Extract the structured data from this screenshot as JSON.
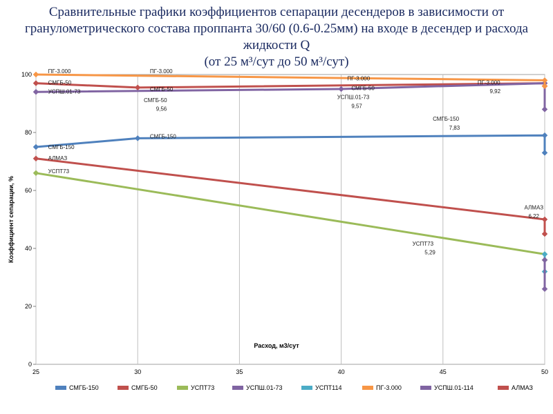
{
  "title": {
    "line1": "Сравнительные графики коэффициентов сепарации десендеров  в зависимости от",
    "line2": "гранулометрического  состава проппанта 30/60 (0.6-0.25мм)  на входе в десендер и расхода",
    "line3": "жидкости Q",
    "line4": "(от 25 м³/сут до 50 м³/сут)"
  },
  "chart_data": {
    "type": "line",
    "xlabel": "Расход, м3/сут",
    "ylabel": "Коэффициент сепарации, %",
    "xlim": [
      25,
      50
    ],
    "ylim": [
      0,
      100
    ],
    "xticks": [
      25,
      30,
      35,
      40,
      45,
      50
    ],
    "yticks": [
      0,
      20,
      40,
      60,
      80,
      100
    ],
    "grid": "vertical",
    "legend_position": "bottom",
    "series": [
      {
        "name": "СМГБ-150",
        "color": "#4f81bd",
        "x": [
          25,
          30,
          50,
          50
        ],
        "y": [
          75,
          78,
          79,
          73
        ]
      },
      {
        "name": "СМГБ-50",
        "color": "#c0504d",
        "x": [
          25,
          30,
          50,
          50
        ],
        "y": [
          97,
          95.5,
          97,
          96
        ]
      },
      {
        "name": "УСПТ73",
        "color": "#9bbb59",
        "x": [
          25,
          50,
          50
        ],
        "y": [
          66,
          38,
          36
        ]
      },
      {
        "name": "УСПШ.01-73",
        "color": "#8064a2",
        "x": [
          25,
          40,
          50,
          50
        ],
        "y": [
          94,
          95,
          97,
          88
        ]
      },
      {
        "name": "УСПТ114",
        "color": "#4bacc6",
        "x": [
          50,
          50
        ],
        "y": [
          38,
          32
        ]
      },
      {
        "name": "ПГ-3.000",
        "color": "#f79646",
        "x": [
          25,
          50,
          50
        ],
        "y": [
          100,
          98,
          96
        ]
      },
      {
        "name": "УСПШ.01-114",
        "color": "#8064a2",
        "x": [
          50,
          50
        ],
        "y": [
          36,
          26
        ]
      },
      {
        "name": "АЛМАЗ",
        "color": "#c0504d",
        "x": [
          25,
          50,
          50
        ],
        "y": [
          71,
          50,
          45
        ]
      }
    ],
    "point_labels": [
      {
        "text": "ПГ-3.000",
        "x": 25.6,
        "y": 100.5
      },
      {
        "text": "ПГ-3.000",
        "x": 30.6,
        "y": 100.5
      },
      {
        "text": "ПГ-3.000",
        "x": 40.3,
        "y": 98
      },
      {
        "text": "ПГ-3.000",
        "x": 46.7,
        "y": 96.6
      },
      {
        "text": "9,92",
        "x": 47.3,
        "y": 93.6
      },
      {
        "text": "СМГБ-50",
        "x": 25.6,
        "y": 96.5
      },
      {
        "text": "СМГБ-50",
        "x": 30.6,
        "y": 94.3
      },
      {
        "text": "СМГБ-50",
        "x": 30.3,
        "y": 90.5
      },
      {
        "text": "9,56",
        "x": 30.9,
        "y": 87.5
      },
      {
        "text": "СМГБ-50",
        "x": 40.5,
        "y": 94.6
      },
      {
        "text": "УСПШ.01-73",
        "x": 25.6,
        "y": 93.5
      },
      {
        "text": "УСПШ.01-73",
        "x": 39.8,
        "y": 91.5
      },
      {
        "text": "9,57",
        "x": 40.5,
        "y": 88.5
      },
      {
        "text": "СМГБ-150",
        "x": 25.6,
        "y": 74.3
      },
      {
        "text": "СМГБ-150",
        "x": 30.6,
        "y": 78
      },
      {
        "text": "СМГБ-150",
        "x": 44.5,
        "y": 84
      },
      {
        "text": "7,83",
        "x": 45.3,
        "y": 81
      },
      {
        "text": "АЛМАЗ",
        "x": 25.6,
        "y": 70.5
      },
      {
        "text": "УСПТ73",
        "x": 25.6,
        "y": 66
      },
      {
        "text": "УСПТ73",
        "x": 43.5,
        "y": 41
      },
      {
        "text": "5,29",
        "x": 44.1,
        "y": 38
      },
      {
        "text": "АЛМАЗ",
        "x": 49.0,
        "y": 53.5
      },
      {
        "text": "6,22",
        "x": 49.2,
        "y": 50.5
      }
    ]
  },
  "legend": [
    {
      "name": "СМГБ-150",
      "color": "#4f81bd"
    },
    {
      "name": "СМГБ-50",
      "color": "#c0504d"
    },
    {
      "name": "УСПТ73",
      "color": "#9bbb59"
    },
    {
      "name": "УСПШ.01-73",
      "color": "#8064a2"
    },
    {
      "name": "УСПТ114",
      "color": "#4bacc6"
    },
    {
      "name": "ПГ-3.000",
      "color": "#f79646"
    },
    {
      "name": "УСПШ.01-114",
      "color": "#8064a2"
    },
    {
      "name": "АЛМАЗ",
      "color": "#c0504d"
    }
  ],
  "colors": {
    "plot_background": "#ffffff",
    "grid": "#bfbfbf",
    "axis_text": "#000000"
  }
}
